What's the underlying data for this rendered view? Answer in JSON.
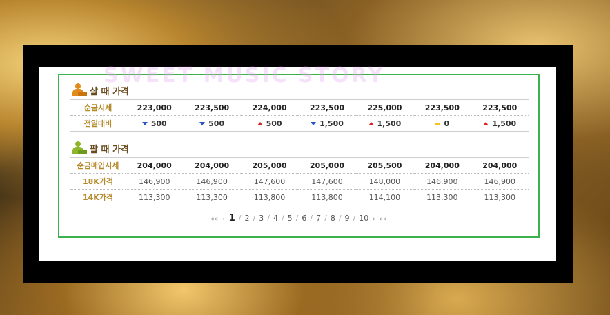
{
  "buy": {
    "title": "살 때 가격",
    "rows": [
      {
        "label": "순금시세",
        "values": [
          "223,000",
          "223,500",
          "224,000",
          "223,500",
          "225,000",
          "223,500",
          "223,500"
        ]
      }
    ],
    "change_label": "전일대비",
    "changes": [
      {
        "dir": "down",
        "value": "500"
      },
      {
        "dir": "down",
        "value": "500"
      },
      {
        "dir": "up",
        "value": "500"
      },
      {
        "dir": "down",
        "value": "1,500"
      },
      {
        "dir": "up",
        "value": "1,500"
      },
      {
        "dir": "same",
        "value": "0"
      },
      {
        "dir": "up",
        "value": "1,500"
      }
    ]
  },
  "sell": {
    "title": "팔 때 가격",
    "rows": [
      {
        "label": "순금매입시세",
        "style": "bold",
        "values": [
          "204,000",
          "204,000",
          "205,000",
          "205,000",
          "205,500",
          "204,000",
          "204,000"
        ]
      },
      {
        "label": "18K가격",
        "style": "light",
        "values": [
          "146,900",
          "146,900",
          "147,600",
          "147,600",
          "148,000",
          "146,900",
          "146,900"
        ]
      },
      {
        "label": "14K가격",
        "style": "light",
        "values": [
          "113,300",
          "113,300",
          "113,800",
          "113,800",
          "114,100",
          "113,300",
          "113,300"
        ]
      }
    ]
  },
  "watermark": "SWEET MUSIC STORY",
  "pagination": {
    "first": "««",
    "prev": "‹",
    "pages": [
      "1",
      "2",
      "3",
      "4",
      "5",
      "6",
      "7",
      "8",
      "9",
      "10"
    ],
    "current": "1",
    "next": "›",
    "last": "»»"
  },
  "colors": {
    "border_green": "#3db14d",
    "label_gold": "#b6892b",
    "up_red": "#e02020",
    "down_blue": "#2b53c6",
    "same_yellow": "#f0c419"
  }
}
